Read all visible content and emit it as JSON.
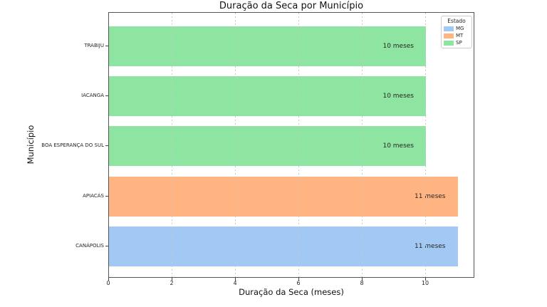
{
  "title": "Duração da Seca por Município",
  "chart_data": {
    "type": "bar",
    "orientation": "horizontal",
    "title": "Duração da Seca por Município",
    "xlabel": "Duração da Seca (meses)",
    "ylabel": "Município",
    "categories": [
      "TRABIJU",
      "IACANGA",
      "BOA ESPERANÇA DO SUL",
      "APIACÁS",
      "CANÁPOLIS"
    ],
    "values": [
      10,
      10,
      10,
      11,
      11
    ],
    "series_group_by": "Estado",
    "states": [
      "SP",
      "SP",
      "SP",
      "MT",
      "MG"
    ],
    "bar_labels": [
      "10 meses",
      "10 meses",
      "10 meses",
      "11 meses",
      "11 meses"
    ],
    "x_ticks": [
      0,
      2,
      4,
      6,
      8,
      10
    ],
    "xlim": [
      0,
      11.55
    ],
    "grid": "vertical-dashed",
    "state_colors": {
      "MG": "#a1c9f4",
      "MT": "#ffb482",
      "SP": "#8de5a1"
    },
    "legend": {
      "title": "Estado",
      "position": "top-right",
      "entries": [
        {
          "label": "MG",
          "color": "#a1c9f4"
        },
        {
          "label": "MT",
          "color": "#ffb482"
        },
        {
          "label": "SP",
          "color": "#8de5a1"
        }
      ]
    }
  }
}
